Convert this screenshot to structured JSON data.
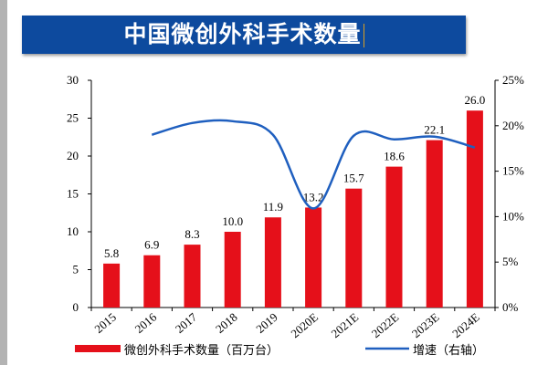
{
  "title": "中国微创外科手术数量",
  "chart_data": {
    "type": "bar+line",
    "title": "中国微创外科手术数量",
    "categories": [
      "2015",
      "2016",
      "2017",
      "2018",
      "2019",
      "2020E",
      "2021E",
      "2022E",
      "2023E",
      "2024E"
    ],
    "series": [
      {
        "name": "微创外科手术数量（百万台）",
        "type": "bar",
        "axis": "left",
        "color": "#e5101a",
        "values": [
          5.8,
          6.9,
          8.3,
          10.0,
          11.9,
          13.2,
          15.7,
          18.6,
          22.1,
          26.0
        ],
        "labels": [
          "5.8",
          "6.9",
          "8.3",
          "10.0",
          "11.9",
          "13.2",
          "15.7",
          "18.6",
          "22.1",
          "26.0"
        ]
      },
      {
        "name": "增速（右轴）",
        "type": "line",
        "axis": "right",
        "color": "#1f5fbf",
        "values": [
          null,
          19.0,
          20.3,
          20.5,
          19.0,
          10.9,
          18.9,
          18.5,
          18.8,
          17.6
        ]
      }
    ],
    "ylim": [
      0,
      30
    ],
    "yticks": [
      "0",
      "5",
      "10",
      "15",
      "20",
      "25",
      "30"
    ],
    "y2lim": [
      0,
      25
    ],
    "y2ticks": [
      "0%",
      "5%",
      "10%",
      "15%",
      "20%",
      "25%"
    ],
    "grid": false,
    "legend": "bottom"
  }
}
